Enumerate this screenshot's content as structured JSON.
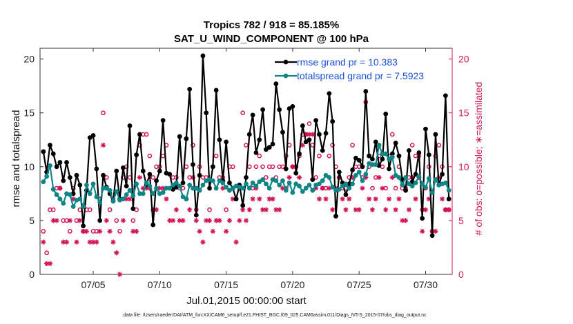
{
  "chart_data": {
    "type": "line",
    "title": "Tropics 782 / 918 = 85.185%",
    "subtitle": "SAT_U_WIND_COMPONENT @ 100 hPa",
    "xlabel": "Jul.01,2015 00:00:00 start",
    "ylabel": "rmse and totalspread",
    "ylabel_right": "# of obs: o=possible; ∗=assimilated",
    "footnote": "data file: /Users/raeder/DAI/ATM_forcXX/CAM6_setup/f.e21.FHIST_BGC.f09_025.CAM6assim.011/Diags_NTrS_2015-07/obs_diag_output.nc",
    "xlim": [
      1,
      32
    ],
    "ylim": [
      0,
      21
    ],
    "ylim_right": [
      0,
      21
    ],
    "xticks": [
      5,
      10,
      15,
      20,
      25,
      30
    ],
    "xtick_labels": [
      "07/05",
      "07/10",
      "07/15",
      "07/20",
      "07/25",
      "07/30"
    ],
    "yticks": [
      0,
      5,
      10,
      15,
      20
    ],
    "ytick_labels": [
      "0",
      "5",
      "10",
      "15",
      "20"
    ],
    "yticks_right": [
      0,
      5,
      10,
      15,
      20
    ],
    "ytick_labels_right": [
      "0",
      "5",
      "10",
      "15",
      "20"
    ],
    "legend_position": "top-right",
    "colors": {
      "rmse": "#000000",
      "totalspread": "#0f8585",
      "obs": "#d4145a",
      "legend_text": "#1a4fd6"
    },
    "series": [
      {
        "name": "rmse grand pr = 10.383",
        "x": [
          1.25,
          1.5,
          1.75,
          2.0,
          2.25,
          2.5,
          2.75,
          3.0,
          3.25,
          3.5,
          3.75,
          4.0,
          4.25,
          4.5,
          4.75,
          5.0,
          5.25,
          5.5,
          5.75,
          6.0,
          6.25,
          6.5,
          6.75,
          7.0,
          7.25,
          7.5,
          7.75,
          8.0,
          8.25,
          8.5,
          8.75,
          9.0,
          9.25,
          9.5,
          9.75,
          10.0,
          10.25,
          10.5,
          10.75,
          11.0,
          11.25,
          11.5,
          11.75,
          12.0,
          12.25,
          12.5,
          12.75,
          13.0,
          13.25,
          13.5,
          13.75,
          14.0,
          14.25,
          14.5,
          14.75,
          15.0,
          15.25,
          15.5,
          15.75,
          16.0,
          16.25,
          16.5,
          16.75,
          17.0,
          17.25,
          17.5,
          17.75,
          18.0,
          18.25,
          18.5,
          18.75,
          19.0,
          19.25,
          19.5,
          19.75,
          20.0,
          20.25,
          20.5,
          20.75,
          21.0,
          21.25,
          21.5,
          21.75,
          22.0,
          22.25,
          22.5,
          22.75,
          23.0,
          23.25,
          23.5,
          23.75,
          24.0,
          24.25,
          24.5,
          24.75,
          25.0,
          25.25,
          25.5,
          25.75,
          26.0,
          26.25,
          26.5,
          26.75,
          27.0,
          27.25,
          27.5,
          27.75,
          28.0,
          28.25,
          28.5,
          28.75,
          29.0,
          29.25,
          29.5,
          29.75,
          30.0,
          30.25,
          30.5,
          30.75,
          31.0,
          31.25,
          31.5,
          31.75
        ],
        "values": [
          11.4,
          9.5,
          12.0,
          11.2,
          10.0,
          10.4,
          8.7,
          10.4,
          9.0,
          7.5,
          9.2,
          8.3,
          4.5,
          7.8,
          12.7,
          12.9,
          9.8,
          5.0,
          9.2,
          8.1,
          7.5,
          6.8,
          9.6,
          7.0,
          9.9,
          8.2,
          13.8,
          6.1,
          11.1,
          13.0,
          9.6,
          8.3,
          9.3,
          4.6,
          8.7,
          9.6,
          14.3,
          9.4,
          9.3,
          7.9,
          8.1,
          12.8,
          8.5,
          12.6,
          17.2,
          10.2,
          5.5,
          9.2,
          20.3,
          15.0,
          8.0,
          10.0,
          17.1,
          12.5,
          8.7,
          12.3,
          8.5,
          8.0,
          7.0,
          8.3,
          6.4,
          9.0,
          13.0,
          14.8,
          11.3,
          12.5,
          15.3,
          11.6,
          11.8,
          12.1,
          17.7,
          15.3,
          13.2,
          9.8,
          15.4,
          15.6,
          9.4,
          11.2,
          13.8,
          12.3,
          12.5,
          8.8,
          14.3,
          13.0,
          11.5,
          13.1,
          16.8,
          14.2,
          5.4,
          9.5,
          8.5,
          7.4,
          8.4,
          9.7,
          10.8,
          10.6,
          10.0,
          17.0,
          11.0,
          10.7,
          12.3,
          10.1,
          10.7,
          14.9,
          9.8,
          11.2,
          12.2,
          11.0,
          8.8,
          7.8,
          11.5,
          8.6,
          9.3,
          11.3,
          5.2,
          13.5,
          11.1,
          3.6,
          13.0,
          8.3,
          9.3,
          16.6,
          7.0
        ]
      },
      {
        "name": "totalspread grand pr = 7.5923",
        "x": [
          1.25,
          1.5,
          1.75,
          2.0,
          2.25,
          2.5,
          2.75,
          3.0,
          3.25,
          3.5,
          3.75,
          4.0,
          4.25,
          4.5,
          4.75,
          5.0,
          5.25,
          5.5,
          5.75,
          6.0,
          6.25,
          6.5,
          6.75,
          7.0,
          7.25,
          7.5,
          7.75,
          8.0,
          8.25,
          8.5,
          8.75,
          9.0,
          9.25,
          9.5,
          9.75,
          10.0,
          10.25,
          10.5,
          10.75,
          11.0,
          11.25,
          11.5,
          11.75,
          12.0,
          12.25,
          12.5,
          12.75,
          13.0,
          13.25,
          13.5,
          13.75,
          14.0,
          14.25,
          14.5,
          14.75,
          15.0,
          15.25,
          15.5,
          15.75,
          16.0,
          16.25,
          16.5,
          16.75,
          17.0,
          17.25,
          17.5,
          17.75,
          18.0,
          18.25,
          18.5,
          18.75,
          19.0,
          19.25,
          19.5,
          19.75,
          20.0,
          20.25,
          20.5,
          20.75,
          21.0,
          21.25,
          21.5,
          21.75,
          22.0,
          22.25,
          22.5,
          22.75,
          23.0,
          23.25,
          23.5,
          23.75,
          24.0,
          24.25,
          24.5,
          24.75,
          25.0,
          25.25,
          25.5,
          25.75,
          26.0,
          26.25,
          26.5,
          26.75,
          27.0,
          27.25,
          27.5,
          27.75,
          28.0,
          28.25,
          28.5,
          28.75,
          29.0,
          29.25,
          29.5,
          29.75,
          30.0,
          30.25,
          30.5,
          30.75,
          31.0,
          31.25,
          31.5,
          31.75
        ],
        "values": [
          8.6,
          9.1,
          10.1,
          7.9,
          7.4,
          7.0,
          6.6,
          7.5,
          7.4,
          6.3,
          6.9,
          7.0,
          6.3,
          8.3,
          7.5,
          8.4,
          7.2,
          6.7,
          8.0,
          8.0,
          7.8,
          6.8,
          7.7,
          6.9,
          7.0,
          7.4,
          7.8,
          7.3,
          8.4,
          7.5,
          7.5,
          8.5,
          8.2,
          7.5,
          8.0,
          7.5,
          7.6,
          8.0,
          8.0,
          8.3,
          8.5,
          8.2,
          7.2,
          7.0,
          8.3,
          8.0,
          8.0,
          7.8,
          8.3,
          8.7,
          8.8,
          8.7,
          8.0,
          8.7,
          8.5,
          8.1,
          7.8,
          8.0,
          8.2,
          8.1,
          8.0,
          8.4,
          8.0,
          8.5,
          8.2,
          8.6,
          8.8,
          8.4,
          8.0,
          8.8,
          8.7,
          8.3,
          8.7,
          7.8,
          8.5,
          7.6,
          8.4,
          8.2,
          7.7,
          8.0,
          8.3,
          7.8,
          8.3,
          8.4,
          8.7,
          9.2,
          9.0,
          8.1,
          7.8,
          7.9,
          8.2,
          8.4,
          8.0,
          8.4,
          9.2,
          9.5,
          8.7,
          9.3,
          10.3,
          10.2,
          10.2,
          12.0,
          11.2,
          11.2,
          10.7,
          10.9,
          9.2,
          9.0,
          8.3,
          9.0,
          8.4,
          8.2,
          8.5,
          9.1,
          8.4,
          8.1,
          8.9,
          7.6,
          8.8,
          8.3,
          8.4,
          8.5,
          7.8
        ]
      }
    ],
    "obs_possible": {
      "name": "o=possible",
      "x": [
        1.25,
        1.5,
        1.75,
        2.0,
        2.25,
        2.5,
        2.75,
        3.0,
        3.25,
        3.5,
        3.75,
        4.0,
        4.25,
        4.5,
        4.75,
        5.0,
        5.25,
        5.5,
        5.75,
        6.0,
        6.25,
        6.5,
        6.75,
        7.0,
        7.25,
        7.5,
        7.75,
        8.0,
        8.25,
        8.5,
        8.75,
        9.0,
        9.25,
        9.5,
        9.75,
        10.0,
        10.25,
        10.5,
        10.75,
        11.0,
        11.25,
        11.5,
        11.75,
        12.0,
        12.25,
        12.5,
        12.75,
        13.0,
        13.25,
        13.5,
        13.75,
        14.0,
        14.25,
        14.5,
        14.75,
        15.0,
        15.25,
        15.5,
        15.75,
        16.0,
        16.25,
        16.5,
        16.75,
        17.0,
        17.25,
        17.5,
        17.75,
        18.0,
        18.25,
        18.5,
        18.75,
        19.0,
        19.25,
        19.5,
        19.75,
        20.0,
        20.25,
        20.5,
        20.75,
        21.0,
        21.25,
        21.5,
        21.75,
        22.0,
        22.25,
        22.5,
        22.75,
        23.0,
        23.25,
        23.5,
        23.75,
        24.0,
        24.25,
        24.5,
        24.75,
        25.0,
        25.25,
        25.5,
        25.75,
        26.0,
        26.25,
        26.5,
        26.75,
        27.0,
        27.25,
        27.5,
        27.75,
        28.0,
        28.25,
        28.5,
        28.75,
        29.0,
        29.25,
        29.5,
        29.75,
        30.0,
        30.25,
        30.5,
        30.75,
        31.0,
        31.25,
        31.5,
        31.75
      ],
      "values": [
        4,
        2,
        6,
        6,
        8,
        8,
        5,
        5,
        4,
        8,
        5,
        6,
        4,
        6,
        6,
        4,
        4,
        7,
        15,
        9,
        6,
        7,
        5,
        4,
        9,
        10,
        9,
        5,
        6,
        12,
        13,
        13,
        11,
        9,
        10,
        10,
        11,
        12,
        8,
        9,
        9,
        8,
        8,
        10,
        9,
        12,
        6,
        10,
        9,
        9,
        6,
        10,
        11,
        9,
        9,
        6,
        10,
        10,
        7,
        8,
        15,
        12,
        10,
        8,
        10,
        11,
        10,
        9,
        10,
        10,
        9,
        10,
        10,
        11,
        12,
        10,
        10,
        11,
        13,
        13,
        14,
        12,
        9,
        11,
        8,
        8,
        11,
        12,
        10,
        9,
        8,
        8,
        9,
        12,
        10,
        10,
        9,
        16,
        10,
        8,
        9,
        11,
        10,
        8,
        11,
        13,
        8,
        10,
        8,
        8,
        9,
        12,
        11,
        11,
        6,
        8,
        10,
        4,
        11,
        12,
        10,
        6,
        6
      ]
    },
    "obs_assimilated": {
      "name": "∗=assimilated",
      "x": [
        1.25,
        1.5,
        1.75,
        2.0,
        2.25,
        2.5,
        2.75,
        3.0,
        3.25,
        3.5,
        3.75,
        4.0,
        4.25,
        4.5,
        4.75,
        5.0,
        5.25,
        5.5,
        5.75,
        6.0,
        6.25,
        6.5,
        6.75,
        7.0,
        7.25,
        7.5,
        7.75,
        8.0,
        8.25,
        8.5,
        8.75,
        9.0,
        9.25,
        9.5,
        9.75,
        10.0,
        10.25,
        10.5,
        10.75,
        11.0,
        11.25,
        11.5,
        11.75,
        12.0,
        12.25,
        12.5,
        12.75,
        13.0,
        13.25,
        13.5,
        13.75,
        14.0,
        14.25,
        14.5,
        14.75,
        15.0,
        15.25,
        15.5,
        15.75,
        16.0,
        16.25,
        16.5,
        16.75,
        17.0,
        17.25,
        17.5,
        17.75,
        18.0,
        18.25,
        18.5,
        18.75,
        19.0,
        19.25,
        19.5,
        19.75,
        20.0,
        20.25,
        20.5,
        20.75,
        21.0,
        21.25,
        21.5,
        21.75,
        22.0,
        22.25,
        22.5,
        22.75,
        23.0,
        23.25,
        23.5,
        23.75,
        24.0,
        24.25,
        24.5,
        24.75,
        25.0,
        25.25,
        25.5,
        25.75,
        26.0,
        26.25,
        26.5,
        26.75,
        27.0,
        27.25,
        27.5,
        27.75,
        28.0,
        28.25,
        28.5,
        28.75,
        29.0,
        29.25,
        29.5,
        29.75,
        30.0,
        30.25,
        30.5,
        30.75,
        31.0,
        31.25,
        31.5,
        31.75
      ],
      "values": [
        3,
        1,
        1,
        5,
        5,
        8,
        3,
        3,
        5,
        7,
        3,
        5,
        4,
        4,
        3,
        3,
        3,
        4,
        12,
        5,
        4,
        3,
        2,
        0,
        5,
        7,
        7,
        4,
        4,
        9,
        8,
        8,
        8,
        6,
        6,
        8,
        8,
        7,
        5,
        5,
        6,
        5,
        5,
        7,
        6,
        9,
        5,
        4,
        3,
        5,
        5,
        4,
        5,
        5,
        8,
        4,
        5,
        7,
        3,
        5,
        6,
        5,
        6,
        7,
        8,
        7,
        6,
        6,
        7,
        7,
        6,
        6,
        8,
        8,
        9,
        10,
        10,
        9,
        12,
        13,
        13,
        13,
        8,
        7,
        8,
        7,
        8,
        6,
        8,
        9,
        7,
        6,
        7,
        9,
        6,
        6,
        8,
        9,
        7,
        6,
        7,
        9,
        8,
        6,
        7,
        9,
        6,
        7,
        5,
        5,
        6,
        9,
        7,
        9,
        4,
        6,
        7,
        4,
        4,
        9,
        7,
        6,
        6
      ]
    }
  }
}
